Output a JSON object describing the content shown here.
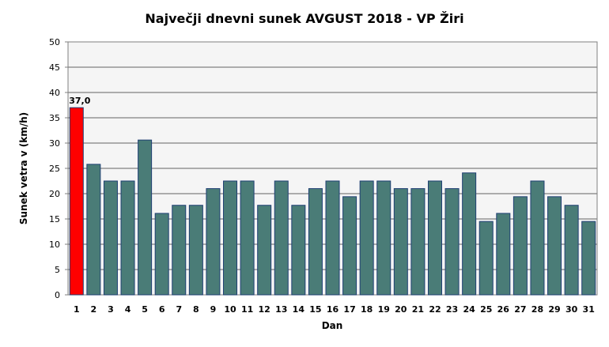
{
  "chart_data": {
    "type": "bar",
    "title": "Največji dnevni sunek AVGUST 2018 - VP Žiri",
    "xlabel": "Dan",
    "ylabel": "Sunek vetra  v (km/h)",
    "ylim": [
      0,
      50
    ],
    "yticks": [
      0,
      5,
      10,
      15,
      20,
      25,
      30,
      35,
      40,
      45,
      50
    ],
    "grid": true,
    "categories": [
      "1",
      "2",
      "3",
      "4",
      "5",
      "6",
      "7",
      "8",
      "9",
      "10",
      "11",
      "12",
      "13",
      "14",
      "15",
      "16",
      "17",
      "18",
      "19",
      "20",
      "21",
      "22",
      "23",
      "24",
      "25",
      "26",
      "27",
      "28",
      "29",
      "30",
      "31"
    ],
    "values": [
      37.0,
      25.8,
      22.5,
      22.5,
      30.6,
      16.1,
      17.7,
      17.7,
      21.0,
      22.5,
      22.5,
      17.7,
      22.5,
      17.7,
      21.0,
      22.5,
      19.4,
      22.5,
      22.5,
      21.0,
      21.0,
      22.5,
      21.0,
      24.1,
      14.5,
      16.1,
      19.4,
      22.5,
      19.4,
      17.7,
      14.5
    ],
    "highlight_index": 0,
    "data_label": "37,0",
    "colors": {
      "bar": "#4a7c77",
      "highlight": "#ff0000",
      "bar_border": "#1f3f73",
      "plot_bg": "#f5f5f5",
      "grid": "#808080"
    }
  }
}
